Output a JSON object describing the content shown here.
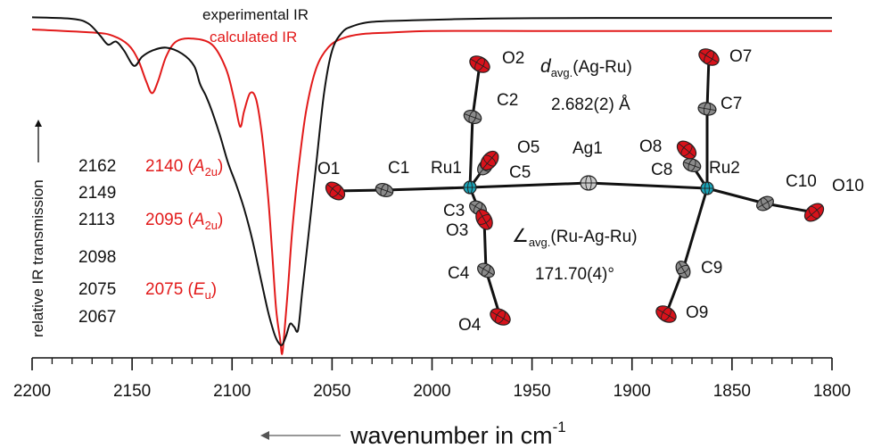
{
  "chart_data": {
    "type": "line",
    "xlabel_main": "wavenumber in cm",
    "xlabel_sup": "-1",
    "ylabel": "relative IR transmission",
    "xlim": [
      2200,
      1800
    ],
    "x_direction": "decreasing",
    "xticks": [
      2200,
      2150,
      2100,
      2050,
      2000,
      1950,
      1900,
      1850,
      1800
    ],
    "grid": false,
    "legend": {
      "placement": "top-center",
      "entries": [
        {
          "label": "experimental IR",
          "color": "#111111"
        },
        {
          "label": "calculated IR",
          "color": "#e21a1a"
        }
      ]
    },
    "series": [
      {
        "name": "experimental IR",
        "color": "#111111",
        "x": [
          2200,
          2180,
          2172,
          2166,
          2162,
          2158,
          2154,
          2149,
          2145,
          2140,
          2133,
          2125,
          2119,
          2116,
          2113,
          2110,
          2106,
          2102,
          2098,
          2094,
          2090,
          2086,
          2082,
          2079,
          2077,
          2075,
          2073,
          2071,
          2069,
          2067,
          2065,
          2062,
          2058,
          2054,
          2050,
          2045,
          2040,
          2030,
          2010,
          1980,
          1950,
          1900,
          1850,
          1800
        ],
        "y": [
          0.99,
          0.985,
          0.97,
          0.93,
          0.9,
          0.91,
          0.88,
          0.83,
          0.86,
          0.88,
          0.89,
          0.87,
          0.83,
          0.77,
          0.73,
          0.68,
          0.6,
          0.51,
          0.44,
          0.36,
          0.26,
          0.14,
          0.02,
          -0.05,
          -0.08,
          -0.09,
          -0.06,
          -0.02,
          -0.03,
          -0.04,
          0.08,
          0.26,
          0.5,
          0.74,
          0.88,
          0.94,
          0.96,
          0.975,
          0.98,
          0.985,
          0.987,
          0.988,
          0.988,
          0.988
        ]
      },
      {
        "name": "calculated IR",
        "color": "#e21a1a",
        "x": [
          2200,
          2170,
          2160,
          2152,
          2147,
          2143,
          2140,
          2137,
          2133,
          2128,
          2120,
          2110,
          2103,
          2099,
          2096,
          2094,
          2091,
          2088,
          2085,
          2082,
          2080,
          2078,
          2076,
          2075,
          2074,
          2072,
          2070,
          2067,
          2063,
          2058,
          2052,
          2045,
          2035,
          2020,
          2000,
          1950,
          1900,
          1850,
          1800
        ],
        "y": [
          0.95,
          0.94,
          0.93,
          0.9,
          0.85,
          0.78,
          0.74,
          0.78,
          0.86,
          0.91,
          0.92,
          0.9,
          0.82,
          0.72,
          0.63,
          0.68,
          0.74,
          0.72,
          0.6,
          0.4,
          0.22,
          0.03,
          -0.07,
          -0.12,
          -0.06,
          0.1,
          0.28,
          0.48,
          0.68,
          0.82,
          0.89,
          0.92,
          0.935,
          0.94,
          0.945,
          0.945,
          0.945,
          0.945,
          0.945
        ]
      }
    ],
    "annotations": {
      "experimental_peaks": [
        "2162",
        "2149",
        "2113",
        "2098",
        "2075",
        "2067"
      ],
      "calculated_peaks": [
        {
          "value": "2140",
          "symmetry_base": "A",
          "symmetry_sub": "2u",
          "row": 0
        },
        {
          "value": "2095",
          "symmetry_base": "A",
          "symmetry_sub": "2u",
          "row": 2
        },
        {
          "value": "2075",
          "symmetry_base": "E",
          "symmetry_sub": "u",
          "row": 4
        }
      ],
      "distance_label": {
        "prefix": "d",
        "sub": "avg.",
        "text": "(Ag-Ru)",
        "value": "2.682(2) Å"
      },
      "angle_label": {
        "prefix": "∠",
        "sub": "avg.",
        "text": "(Ru-Ag-Ru)",
        "value": "171.70(4)°"
      }
    },
    "structure_atoms": [
      {
        "label": "O1",
        "element": "O"
      },
      {
        "label": "C1",
        "element": "C"
      },
      {
        "label": "Ru1",
        "element": "Ru"
      },
      {
        "label": "C2",
        "element": "C"
      },
      {
        "label": "O2",
        "element": "O"
      },
      {
        "label": "C3",
        "element": "C"
      },
      {
        "label": "O3",
        "element": "O"
      },
      {
        "label": "C4",
        "element": "C"
      },
      {
        "label": "O4",
        "element": "O"
      },
      {
        "label": "C5",
        "element": "C"
      },
      {
        "label": "O5",
        "element": "O"
      },
      {
        "label": "Ag1",
        "element": "Ag"
      },
      {
        "label": "Ru2",
        "element": "Ru"
      },
      {
        "label": "C7",
        "element": "C"
      },
      {
        "label": "O7",
        "element": "O"
      },
      {
        "label": "C8",
        "element": "C"
      },
      {
        "label": "O8",
        "element": "O"
      },
      {
        "label": "C9",
        "element": "C"
      },
      {
        "label": "O9",
        "element": "O"
      },
      {
        "label": "C10",
        "element": "C"
      },
      {
        "label": "O10",
        "element": "O"
      }
    ],
    "structure_bonds": [
      [
        "O1",
        "C1"
      ],
      [
        "C1",
        "Ru1"
      ],
      [
        "Ru1",
        "C2"
      ],
      [
        "C2",
        "O2"
      ],
      [
        "Ru1",
        "C3"
      ],
      [
        "C3",
        "O3"
      ],
      [
        "O3",
        "C4"
      ],
      [
        "C4",
        "O4"
      ],
      [
        "Ru1",
        "C5"
      ],
      [
        "C5",
        "O5"
      ],
      [
        "Ru1",
        "Ag1"
      ],
      [
        "Ag1",
        "Ru2"
      ],
      [
        "Ru2",
        "C7"
      ],
      [
        "C7",
        "O7"
      ],
      [
        "Ru2",
        "C8"
      ],
      [
        "C8",
        "O8"
      ],
      [
        "Ru2",
        "C9"
      ],
      [
        "C9",
        "O9"
      ],
      [
        "Ru2",
        "C10"
      ],
      [
        "C10",
        "O10"
      ]
    ],
    "element_colors": {
      "O": "#d8121b",
      "C": "#8a8a8a",
      "Ru": "#1aa4b8",
      "Ag": "#c8c8c8"
    }
  }
}
